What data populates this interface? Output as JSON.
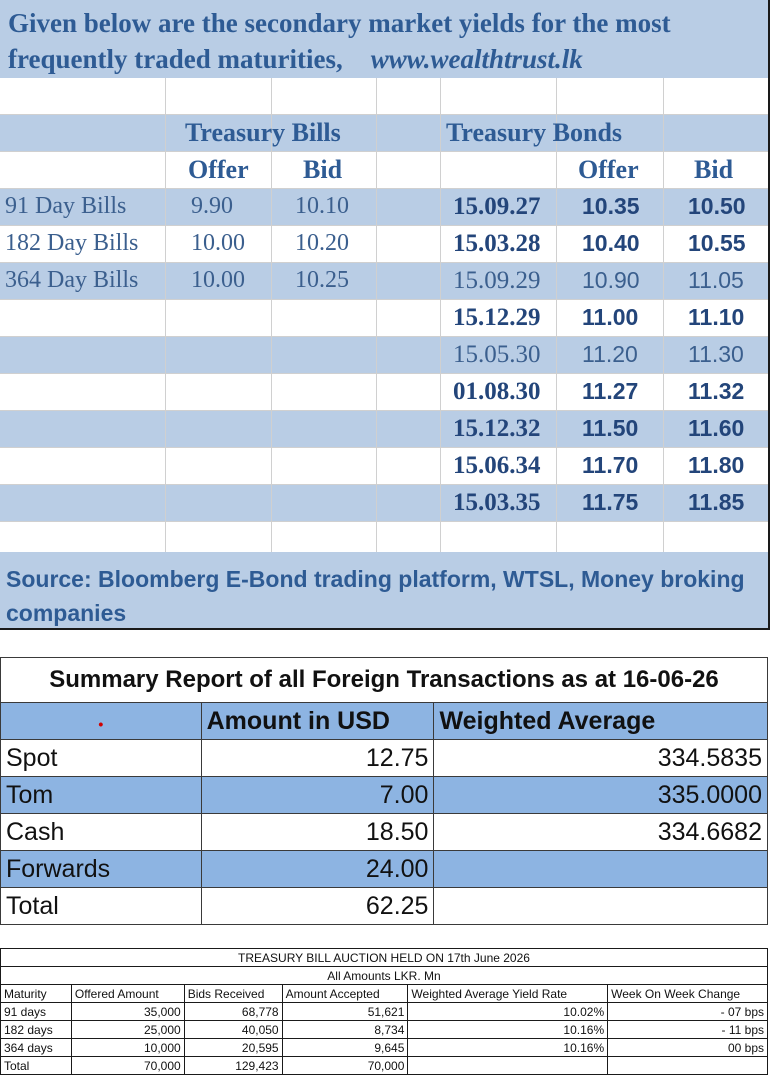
{
  "yields": {
    "title_line1": "Given below are the secondary market yields for the most",
    "title_line2": "frequently traded maturities,",
    "website": "www.wealthtrust.lk",
    "bills_heading": "Treasury Bills",
    "bonds_heading": "Treasury Bonds",
    "offer_label": "Offer",
    "bid_label": "Bid",
    "bills": [
      {
        "maturity": "91 Day Bills",
        "offer": "9.90",
        "bid": "10.10"
      },
      {
        "maturity": "182 Day Bills",
        "offer": "10.00",
        "bid": "10.20"
      },
      {
        "maturity": "364 Day Bills",
        "offer": "10.00",
        "bid": "10.25"
      }
    ],
    "bonds": [
      {
        "maturity": "15.09.27",
        "offer": "10.35",
        "bid": "10.50",
        "bold": true
      },
      {
        "maturity": "15.03.28",
        "offer": "10.40",
        "bid": "10.55",
        "bold": true
      },
      {
        "maturity": "15.09.29",
        "offer": "10.90",
        "bid": "11.05",
        "bold": false
      },
      {
        "maturity": "15.12.29",
        "offer": "11.00",
        "bid": "11.10",
        "bold": true
      },
      {
        "maturity": "15.05.30",
        "offer": "11.20",
        "bid": "11.30",
        "bold": false
      },
      {
        "maturity": "01.08.30",
        "offer": "11.27",
        "bid": "11.32",
        "bold": true
      },
      {
        "maturity": "15.12.32",
        "offer": "11.50",
        "bid": "11.60",
        "bold": true
      },
      {
        "maturity": "15.06.34",
        "offer": "11.70",
        "bid": "11.80",
        "bold": true
      },
      {
        "maturity": "15.03.35",
        "offer": "11.75",
        "bid": "11.85",
        "bold": true
      }
    ],
    "source": "Source: Bloomberg E-Bond trading platform, WTSL, Money broking companies",
    "banner_color": "#b9cde5"
  },
  "fx": {
    "title": "Summary Report of all Foreign Transactions as at 16-06-26",
    "col_amount": "Amount in USD",
    "col_wavg": "Weighted Average",
    "rows": [
      {
        "label": "Spot",
        "amount": "12.75",
        "wavg": "334.5835"
      },
      {
        "label": "Tom",
        "amount": "7.00",
        "wavg": "335.0000"
      },
      {
        "label": "Cash",
        "amount": "18.50",
        "wavg": "334.6682"
      },
      {
        "label": "Forwards",
        "amount": "24.00",
        "wavg": ""
      },
      {
        "label": "Total",
        "amount": "62.25",
        "wavg": ""
      }
    ],
    "band_color": "#8db4e2"
  },
  "auction": {
    "title": "TREASURY BILL AUCTION HELD ON 17th June 2026",
    "subtitle": "All Amounts LKR. Mn",
    "headers": [
      "Maturity",
      "Offered Amount",
      "Bids Received",
      "Amount Accepted",
      "Weighted Average Yield Rate",
      "Week On Week Change"
    ],
    "rows": [
      {
        "maturity": "91 days",
        "offered": "35,000",
        "bids": "68,778",
        "accepted": "51,621",
        "yield": "10.02%",
        "change": "- 07 bps"
      },
      {
        "maturity": "182 days",
        "offered": "25,000",
        "bids": "40,050",
        "accepted": "8,734",
        "yield": "10.16%",
        "change": "- 11 bps"
      },
      {
        "maturity": "364 days",
        "offered": "10,000",
        "bids": "20,595",
        "accepted": "9,645",
        "yield": "10.16%",
        "change": "00 bps"
      },
      {
        "maturity": "Total",
        "offered": "70,000",
        "bids": "129,423",
        "accepted": "70,000",
        "yield": "",
        "change": ""
      }
    ]
  }
}
